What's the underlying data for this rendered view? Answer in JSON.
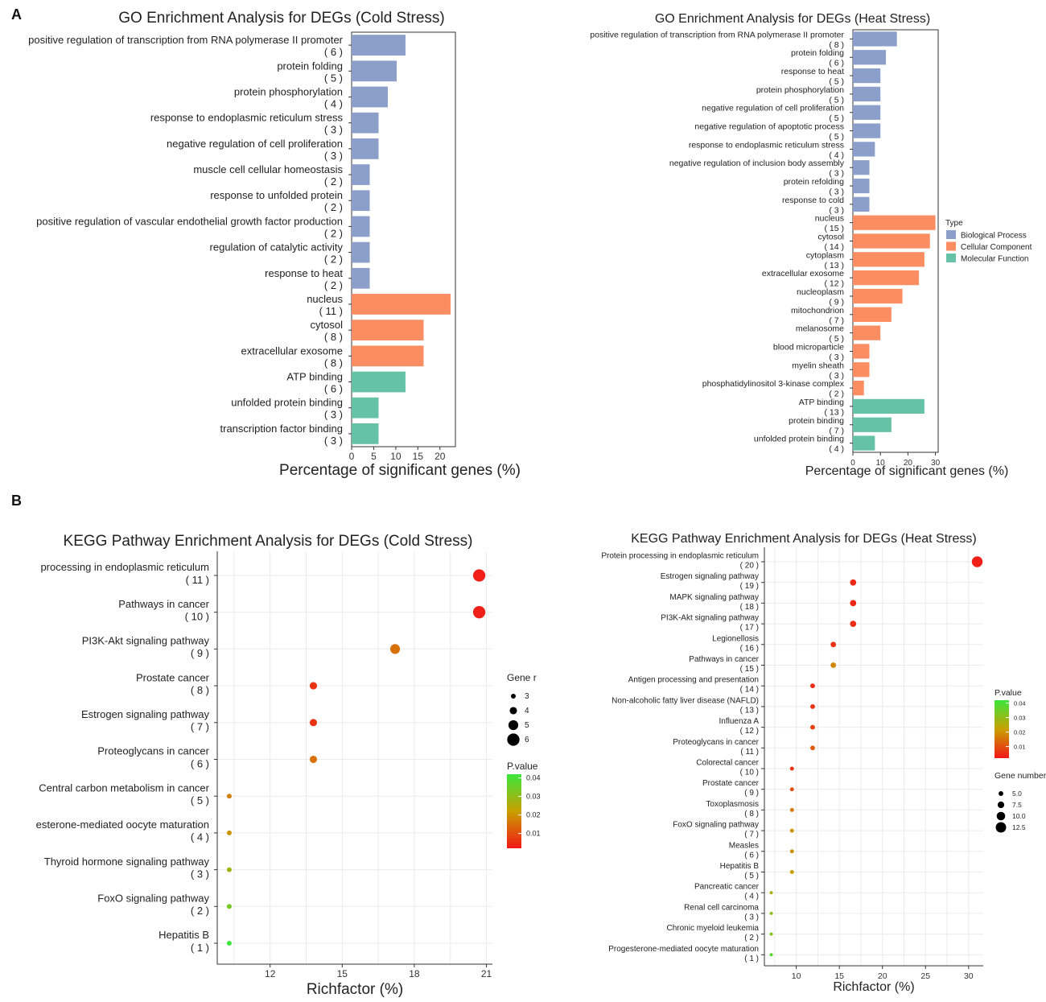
{
  "panel_labels": [
    "A",
    "B"
  ],
  "colors": {
    "bp": "#8C9FCB",
    "cc": "#FB8D62",
    "mf": "#66C2A5",
    "grid_bg": "#ffffff",
    "grid_line": "#EBEBEB",
    "p_high": "#3CE63C",
    "p_mid": "#C8A000",
    "p_low": "#F21818"
  },
  "chart_data": [
    {
      "id": "go_cold",
      "type": "bar",
      "title": "GO Enrichment Analysis for DEGs (Cold Stress)",
      "xlabel": "Percentage of significant genes (%)",
      "xlim": [
        0,
        23.5
      ],
      "xticks": [
        "0",
        "5",
        "10",
        "15",
        "20"
      ],
      "xtick_values": [
        0,
        5,
        10,
        15,
        20
      ],
      "categories": [
        "positive regulation of transcription from RNA polymerase II promoter",
        "protein folding",
        "protein phosphorylation",
        "response to endoplasmic reticulum stress",
        "negative regulation of cell proliferation",
        "muscle cell cellular homeostasis",
        "response to unfolded protein",
        "positive regulation of vascular endothelial growth factor production",
        "regulation of catalytic activity",
        "response to heat",
        "nucleus",
        "cytosol",
        "extracellular exosome",
        "ATP binding",
        "unfolded protein binding",
        "transcription factor binding"
      ],
      "counts": [
        "( 6 )",
        "( 5 )",
        "( 4 )",
        "( 3 )",
        "( 3 )",
        "( 2 )",
        "( 2 )",
        "( 2 )",
        "( 2 )",
        "( 2 )",
        "( 11 )",
        "( 8 )",
        "( 8 )",
        "( 6 )",
        "( 3 )",
        "( 3 )"
      ],
      "values": [
        12.2,
        10.2,
        8.2,
        6.1,
        6.1,
        4.1,
        4.1,
        4.1,
        4.1,
        4.1,
        22.4,
        16.3,
        16.3,
        12.2,
        6.1,
        6.1
      ],
      "types": [
        "bp",
        "bp",
        "bp",
        "bp",
        "bp",
        "bp",
        "bp",
        "bp",
        "bp",
        "bp",
        "cc",
        "cc",
        "cc",
        "mf",
        "mf",
        "mf"
      ]
    },
    {
      "id": "go_heat",
      "type": "bar",
      "title": "GO Enrichment Analysis for DEGs (Heat Stress)",
      "xlabel": "Percentage of significant genes (%)",
      "xlim": [
        0,
        31
      ],
      "xticks": [
        "0",
        "10",
        "20",
        "30"
      ],
      "xtick_values": [
        0,
        10,
        20,
        30
      ],
      "categories": [
        "positive regulation of transcription from RNA polymerase II promoter",
        "protein folding",
        "response to heat",
        "protein phosphorylation",
        "negative regulation of cell proliferation",
        "negative regulation of apoptotic process",
        "response to endoplasmic reticulum stress",
        "negative regulation of inclusion body assembly",
        "protein refolding",
        "response to cold",
        "nucleus",
        "cytosol",
        "cytoplasm",
        "extracellular exosome",
        "nucleoplasm",
        "mitochondrion",
        "melanosome",
        "blood microparticle",
        "myelin sheath",
        "phosphatidylinositol 3-kinase complex",
        "ATP binding",
        "protein binding",
        "unfolded protein binding"
      ],
      "counts": [
        "( 8 )",
        "( 6 )",
        "( 5 )",
        "( 5 )",
        "( 5 )",
        "( 5 )",
        "( 4 )",
        "( 3 )",
        "( 3 )",
        "( 3 )",
        "( 15 )",
        "( 14 )",
        "( 13 )",
        "( 12 )",
        "( 9 )",
        "( 7 )",
        "( 5 )",
        "( 3 )",
        "( 3 )",
        "( 2 )",
        "( 13 )",
        "( 7 )",
        "( 4 )"
      ],
      "values": [
        16,
        12,
        10,
        10,
        10,
        10,
        8,
        6,
        6,
        6,
        30,
        28,
        26,
        24,
        18,
        14,
        10,
        6,
        6,
        4,
        26,
        14,
        8
      ],
      "types": [
        "bp",
        "bp",
        "bp",
        "bp",
        "bp",
        "bp",
        "bp",
        "bp",
        "bp",
        "bp",
        "cc",
        "cc",
        "cc",
        "cc",
        "cc",
        "cc",
        "cc",
        "cc",
        "cc",
        "cc",
        "mf",
        "mf",
        "mf"
      ],
      "legend": {
        "title": "Type",
        "items": [
          {
            "label": "Biological Process",
            "key": "bp"
          },
          {
            "label": "Cellular Component",
            "key": "cc"
          },
          {
            "label": "Molecular Function",
            "key": "mf"
          }
        ]
      }
    },
    {
      "id": "kegg_cold",
      "type": "scatter",
      "title": "KEGG Pathway Enrichment Analysis for DEGs (Cold Stress)",
      "xlabel": "Richfactor (%)",
      "xlim": [
        9.8,
        21.25
      ],
      "xticks": [
        "12",
        "15",
        "18",
        "21"
      ],
      "xtick_values": [
        12,
        15,
        18,
        21
      ],
      "categories": [
        "processing in endoplasmic reticulum",
        "Pathways in cancer",
        "PI3K-Akt signaling pathway",
        "Prostate cancer",
        "Estrogen signaling pathway",
        "Proteoglycans in cancer",
        "Central carbon metabolism in cancer",
        "esterone-mediated oocyte maturation",
        "Thyroid hormone signaling pathway",
        "FoxO signaling pathway",
        "Hepatitis B"
      ],
      "counts": [
        "( 11 )",
        "( 10 )",
        "( 9 )",
        "( 8 )",
        "( 7 )",
        "( 6 )",
        "( 5 )",
        "( 4 )",
        "( 3 )",
        "( 2 )",
        "( 1 )"
      ],
      "x": [
        20.7,
        20.7,
        17.2,
        13.8,
        13.8,
        13.8,
        10.3,
        10.3,
        10.3,
        10.3,
        10.3
      ],
      "gene_number": [
        6,
        6,
        5,
        4,
        4,
        4,
        3,
        3,
        3,
        3,
        3
      ],
      "p_value": [
        0.003,
        0.003,
        0.015,
        0.006,
        0.006,
        0.015,
        0.017,
        0.02,
        0.028,
        0.034,
        0.042
      ],
      "legend_size": {
        "title": "Gene r",
        "values": [
          "3",
          "4",
          "5",
          "6"
        ],
        "numeric": [
          3,
          4,
          5,
          6
        ]
      },
      "legend_color": {
        "title": "P.value",
        "ticks": [
          "0.04",
          "0.03",
          "0.02",
          "0.01"
        ],
        "numeric": [
          0.04,
          0.03,
          0.02,
          0.01
        ]
      }
    },
    {
      "id": "kegg_heat",
      "type": "scatter",
      "title": "KEGG Pathway Enrichment Analysis for DEGs (Heat Stress)",
      "xlabel": "Richfactor (%)",
      "xlim": [
        6.3,
        31.7
      ],
      "xticks": [
        "10",
        "15",
        "20",
        "25",
        "30"
      ],
      "xtick_values": [
        10,
        15,
        20,
        25,
        30
      ],
      "categories": [
        "Protein processing in endoplasmic reticulum",
        "Estrogen signaling pathway",
        "MAPK signaling pathway",
        "PI3K-Akt signaling pathway",
        "Legionellosis",
        "Pathways in cancer",
        "Antigen processing and presentation",
        "Non-alcoholic fatty liver disease (NAFLD)",
        "Influenza A",
        "Proteoglycans in cancer",
        "Colorectal cancer",
        "Prostate cancer",
        "Toxoplasmosis",
        "FoxO signaling pathway",
        "Measles",
        "Hepatitis B",
        "Pancreatic cancer",
        "Renal cell carcinoma",
        "Chronic myeloid leukemia",
        "Progesterone-mediated oocyte maturation"
      ],
      "counts": [
        "( 20 )",
        "( 19 )",
        "( 18 )",
        "( 17 )",
        "( 16 )",
        "( 15 )",
        "( 14 )",
        "( 13 )",
        "( 12 )",
        "( 11 )",
        "( 10 )",
        "( 9 )",
        "( 8 )",
        "( 7 )",
        "( 6 )",
        "( 5 )",
        "( 4 )",
        "( 3 )",
        "( 2 )",
        "( 1 )"
      ],
      "x": [
        31,
        16.6,
        16.6,
        16.6,
        14.3,
        14.3,
        11.9,
        11.9,
        11.9,
        11.9,
        9.5,
        9.5,
        9.5,
        9.5,
        9.5,
        9.5,
        7.1,
        7.1,
        7.1,
        7.1
      ],
      "gene_number": [
        13,
        7,
        7,
        7,
        6,
        6,
        5,
        5,
        5,
        5,
        4,
        4,
        4,
        4,
        4,
        4,
        3,
        3,
        3,
        3
      ],
      "p_value": [
        0.003,
        0.004,
        0.004,
        0.005,
        0.006,
        0.018,
        0.005,
        0.006,
        0.008,
        0.012,
        0.006,
        0.01,
        0.016,
        0.02,
        0.02,
        0.022,
        0.026,
        0.03,
        0.032,
        0.038
      ],
      "legend_size": {
        "title": "Gene number",
        "values": [
          "5.0",
          "7.5",
          "10.0",
          "12.5"
        ],
        "numeric": [
          5,
          7.5,
          10,
          12.5
        ]
      },
      "legend_color": {
        "title": "P.value",
        "ticks": [
          "0.04",
          "0.03",
          "0.02",
          "0.01"
        ],
        "numeric": [
          0.04,
          0.03,
          0.02,
          0.01
        ]
      }
    }
  ]
}
